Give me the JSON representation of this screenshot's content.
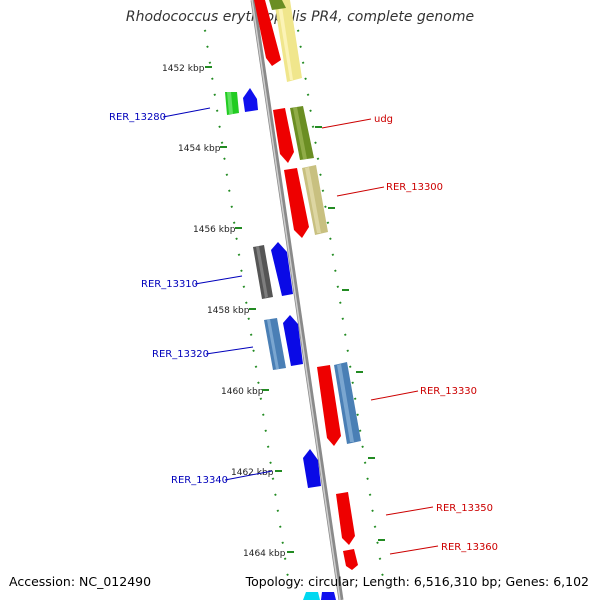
{
  "title": "Rhodococcus erythropolis PR4, complete genome",
  "footer": {
    "accession": "Accession: NC_012490",
    "summary": "Topology: circular; Length: 6,516,310 bp; Genes: 6,102"
  },
  "tick_labels": [
    "1452 kbp",
    "1454 kbp",
    "1456 kbp",
    "1458 kbp",
    "1460 kbp",
    "1462 kbp",
    "1464 kbp"
  ],
  "colors": {
    "forward_label": "#0000bb",
    "reverse_label": "#cc0000",
    "tick_green": "#228b22",
    "backbone": "#8a8a8a"
  },
  "gene_labels": [
    {
      "text": "RER_13280",
      "strand": "forward"
    },
    {
      "text": "udg",
      "strand": "reverse"
    },
    {
      "text": "RER_13300",
      "strand": "reverse"
    },
    {
      "text": "RER_13310",
      "strand": "forward"
    },
    {
      "text": "RER_13320",
      "strand": "forward"
    },
    {
      "text": "RER_13330",
      "strand": "reverse"
    },
    {
      "text": "RER_13340",
      "strand": "forward"
    },
    {
      "text": "RER_13350",
      "strand": "reverse"
    },
    {
      "text": "RER_13360",
      "strand": "reverse"
    }
  ]
}
